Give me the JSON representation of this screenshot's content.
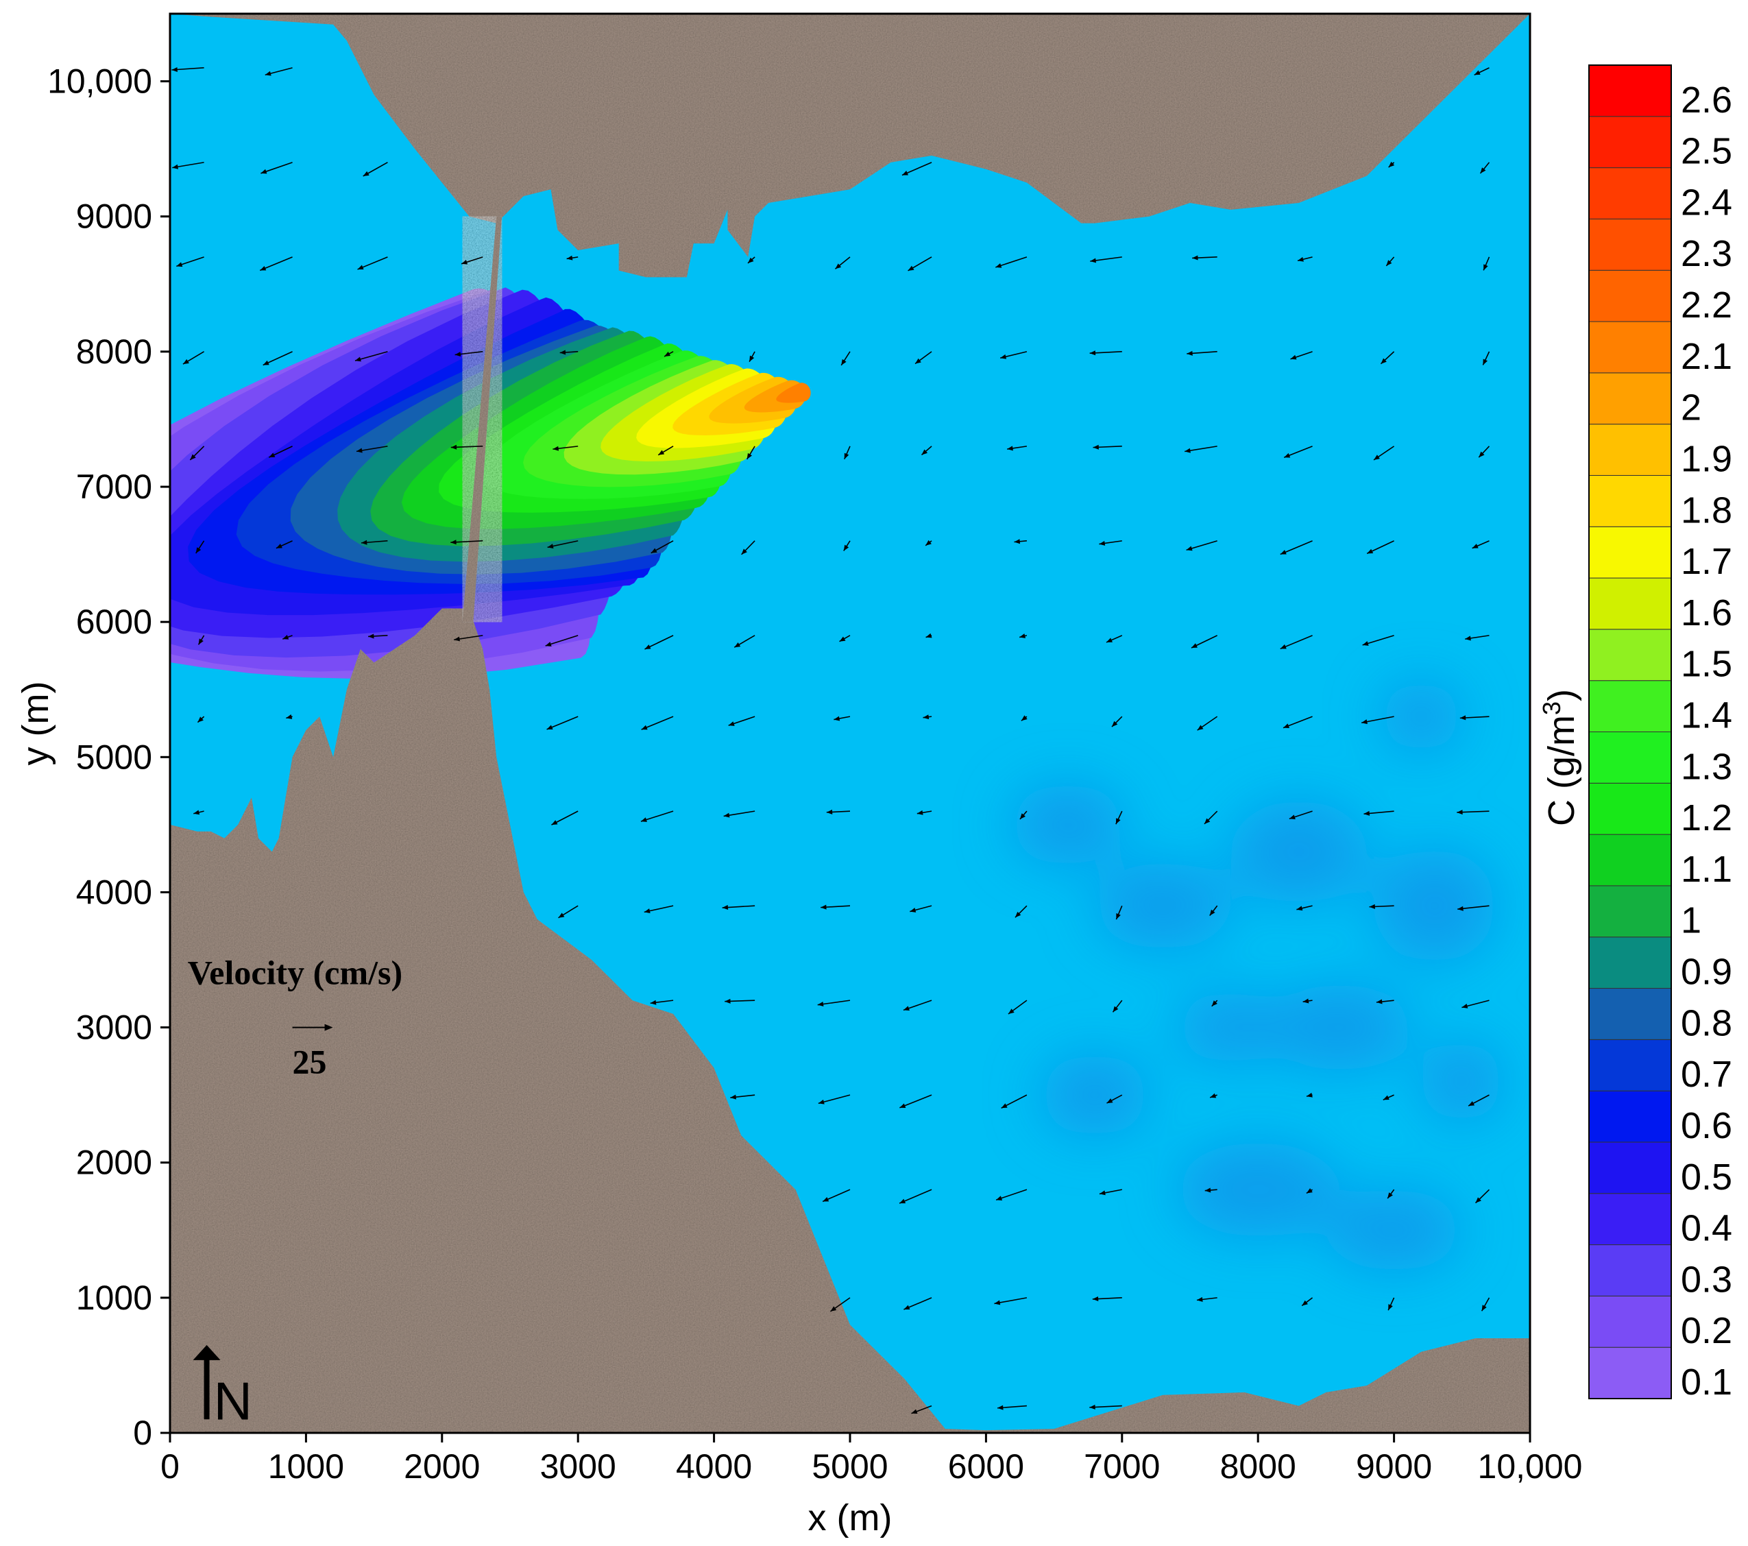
{
  "chart_data": {
    "type": "heatmap",
    "title": "",
    "xlabel": "x (m)",
    "ylabel": "y (m)",
    "xlim": [
      0,
      10000
    ],
    "ylim": [
      0,
      10500
    ],
    "x_ticks": [
      0,
      1000,
      2000,
      3000,
      4000,
      5000,
      6000,
      7000,
      8000,
      9000,
      10000
    ],
    "x_tick_labels": [
      "0",
      "1000",
      "2000",
      "3000",
      "4000",
      "5000",
      "6000",
      "7000",
      "8000",
      "9000",
      "10,000"
    ],
    "y_ticks": [
      0,
      1000,
      2000,
      3000,
      4000,
      5000,
      6000,
      7000,
      8000,
      9000,
      10000
    ],
    "y_tick_labels": [
      "0",
      "1000",
      "2000",
      "3000",
      "4000",
      "5000",
      "6000",
      "7000",
      "8000",
      "9000",
      "10,000"
    ],
    "colorbar": {
      "label_main": "C (g/m",
      "label_sup": "3",
      "label_close": ")",
      "levels": [
        0.1,
        0.2,
        0.3,
        0.4,
        0.5,
        0.6,
        0.7,
        0.8,
        0.9,
        1.0,
        1.1,
        1.2,
        1.3,
        1.4,
        1.5,
        1.6,
        1.7,
        1.8,
        1.9,
        2.0,
        2.1,
        2.2,
        2.3,
        2.4,
        2.5,
        2.6
      ],
      "level_labels": [
        "0.1",
        "0.2",
        "0.3",
        "0.4",
        "0.5",
        "0.6",
        "0.7",
        "0.8",
        "0.9",
        "1",
        "1.1",
        "1.2",
        "1.3",
        "1.4",
        "1.5",
        "1.6",
        "1.7",
        "1.8",
        "1.9",
        "2",
        "2.1",
        "2.2",
        "2.3",
        "2.4",
        "2.5",
        "2.6"
      ],
      "colors": [
        "#8c5cf5",
        "#7a4cf5",
        "#5a3cf5",
        "#3a1ef5",
        "#1e14f2",
        "#0018f0",
        "#0438d8",
        "#1460b0",
        "#0a8c80",
        "#14b040",
        "#10d020",
        "#18e818",
        "#20f020",
        "#40f020",
        "#90f020",
        "#d0f000",
        "#f8f800",
        "#ffd800",
        "#ffc000",
        "#ffa000",
        "#ff8000",
        "#ff6400",
        "#ff5000",
        "#ff3c00",
        "#ff2000",
        "#ff0000"
      ]
    },
    "plume": {
      "source": {
        "x": 4650,
        "y": 7700
      },
      "peak_concentration": 2.2,
      "min_concentration": 0.1
    },
    "velocity_legend": {
      "label": "Velocity (cm/s)",
      "value": "25",
      "ref_cm_s": 25
    },
    "velocity_grid": {
      "x": [
        250,
        900,
        1600,
        2300,
        3000,
        3700,
        4300,
        5000,
        5600,
        6300,
        7000,
        7700,
        8400,
        9000,
        9700
      ],
      "y": [
        200,
        1000,
        1800,
        2500,
        3200,
        3900,
        4600,
        5300,
        5900,
        6600,
        7300,
        8000,
        8700,
        9400,
        10100
      ],
      "u_cm_s": -18,
      "v_cm_s": -7
    },
    "north_label": "N"
  },
  "colors": {
    "water": "#00bff5",
    "water_deep": "#0a8fe8",
    "land": "#a69488",
    "land_dark": "#7a6a60",
    "axis": "#000000"
  }
}
